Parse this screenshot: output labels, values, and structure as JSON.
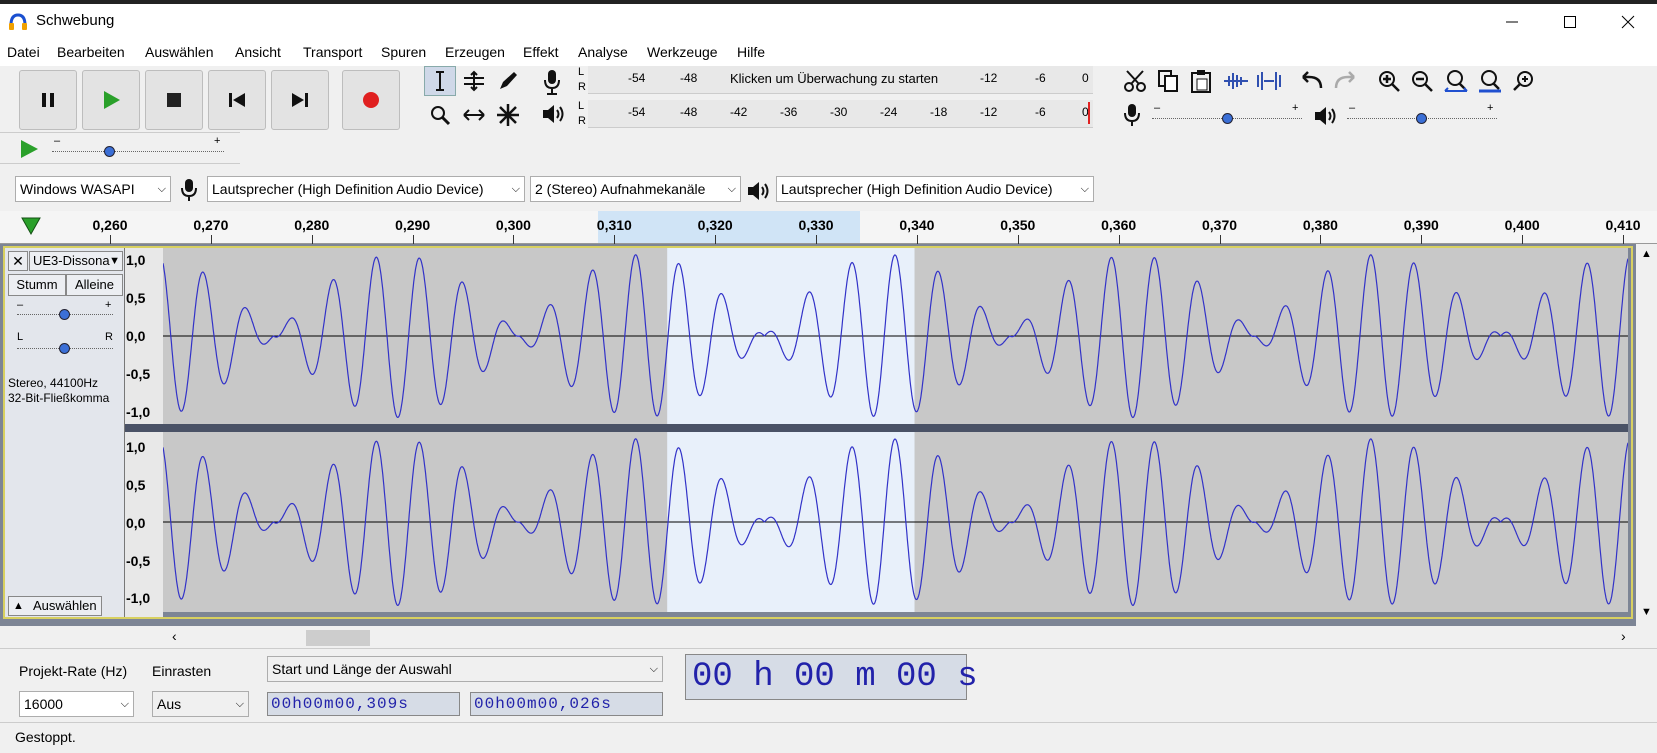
{
  "window": {
    "title": "Schwebung"
  },
  "menu": [
    "Datei",
    "Bearbeiten",
    "Auswählen",
    "Ansicht",
    "Transport",
    "Spuren",
    "Erzeugen",
    "Effekt",
    "Analyse",
    "Werkzeuge",
    "Hilfe"
  ],
  "meter": {
    "record_hint": "Klicken um Überwachung zu starten",
    "rec_ticks": [
      "-54",
      "-48",
      "-12",
      "-6",
      "0"
    ],
    "play_ticks": [
      "-54",
      "-48",
      "-42",
      "-36",
      "-30",
      "-24",
      "-18",
      "-12",
      "-6",
      "0"
    ],
    "L": "L",
    "R": "R"
  },
  "slider_minus": "–",
  "slider_plus": "+",
  "devices": {
    "host": "Windows WASAPI",
    "rec_device": "Lautsprecher (High Definition Audio Device)",
    "channels": "2 (Stereo) Aufnahmekanäle",
    "play_device": "Lautsprecher (High Definition Audio Device)"
  },
  "ruler": [
    "0,260",
    "0,270",
    "0,280",
    "0,290",
    "0,300",
    "0,310",
    "0,320",
    "0,330",
    "0,340",
    "0,350",
    "0,360",
    "0,370",
    "0,380",
    "0,390",
    "0,400",
    "0,410"
  ],
  "track": {
    "name": "UE3-Dissona",
    "mute": "Stumm",
    "solo": "Alleine",
    "pan_l": "L",
    "pan_r": "R",
    "info1": "Stereo, 44100Hz",
    "info2": "32-Bit-Fließkomma",
    "select": "Auswählen",
    "scale": [
      "1,0",
      "0,5",
      "0,0",
      "-0,5",
      "-1,0"
    ],
    "gain_level": 0.5,
    "pan_level": 0.5
  },
  "selection": {
    "start_s": 0.309,
    "length_s": 0.026
  },
  "bottom": {
    "rate_label": "Projekt-Rate (Hz)",
    "snap_label": "Einrasten",
    "rate_value": "16000",
    "snap_value": "Aus",
    "sel_mode": "Start und Länge der Auswahl",
    "start_tc": "00h00m00,309s",
    "length_tc": "00h00m00,026s",
    "pos_tc": "00 h 00 m 00 s"
  },
  "status": "Gestoppt.",
  "colors": {
    "wave": "#3232c8",
    "selected_bg": "#e8f0fa",
    "unselected_bg": "#c8c8c8",
    "record": "#e02020",
    "play": "#2aa02a"
  }
}
